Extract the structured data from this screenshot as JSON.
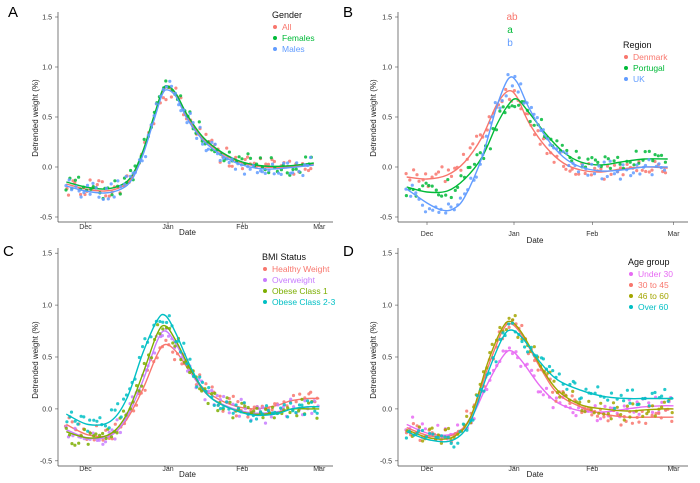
{
  "chart_data": [
    {
      "panel": "A",
      "type": "scatter",
      "xlabel": "Date",
      "ylabel": "Detrended weight (%)",
      "x_ticks": [
        "Dec",
        "Jan",
        "Feb",
        "Mar"
      ],
      "y_ticks": [
        "-0.5",
        "0.0",
        "0.5",
        "1.0",
        "1.5"
      ],
      "ylim": [
        -0.55,
        1.55
      ],
      "xlim": [
        -5,
        95
      ],
      "legend_title": "Gender",
      "series": [
        {
          "name": "All",
          "color": "#F8766D",
          "curve": [
            [
              -2,
              -0.17
            ],
            [
              5,
              -0.22
            ],
            [
              12,
              -0.24
            ],
            [
              18,
              -0.2
            ],
            [
              22,
              -0.1
            ],
            [
              26,
              0.15
            ],
            [
              30,
              0.5
            ],
            [
              33,
              0.75
            ],
            [
              35,
              0.79
            ],
            [
              38,
              0.72
            ],
            [
              42,
              0.5
            ],
            [
              48,
              0.28
            ],
            [
              55,
              0.13
            ],
            [
              62,
              0.04
            ],
            [
              70,
              0.0
            ],
            [
              78,
              0.0
            ],
            [
              85,
              0.02
            ],
            [
              88,
              0.03
            ]
          ]
        },
        {
          "name": "Females",
          "color": "#00BA38",
          "curve": [
            [
              -2,
              -0.15
            ],
            [
              5,
              -0.2
            ],
            [
              12,
              -0.22
            ],
            [
              18,
              -0.18
            ],
            [
              22,
              -0.08
            ],
            [
              26,
              0.17
            ],
            [
              30,
              0.52
            ],
            [
              33,
              0.77
            ],
            [
              35,
              0.81
            ],
            [
              38,
              0.73
            ],
            [
              42,
              0.52
            ],
            [
              48,
              0.29
            ],
            [
              55,
              0.14
            ],
            [
              62,
              0.05
            ],
            [
              70,
              0.01
            ],
            [
              78,
              0.01
            ],
            [
              85,
              0.03
            ],
            [
              88,
              0.04
            ]
          ]
        },
        {
          "name": "Males",
          "color": "#619CFF",
          "curve": [
            [
              -2,
              -0.19
            ],
            [
              5,
              -0.24
            ],
            [
              12,
              -0.26
            ],
            [
              18,
              -0.22
            ],
            [
              22,
              -0.12
            ],
            [
              26,
              0.13
            ],
            [
              30,
              0.48
            ],
            [
              33,
              0.73
            ],
            [
              35,
              0.77
            ],
            [
              38,
              0.7
            ],
            [
              42,
              0.48
            ],
            [
              48,
              0.26
            ],
            [
              55,
              0.11
            ],
            [
              62,
              0.02
            ],
            [
              70,
              -0.02
            ],
            [
              78,
              -0.01
            ],
            [
              85,
              0.01
            ],
            [
              88,
              0.02
            ]
          ]
        }
      ]
    },
    {
      "panel": "B",
      "type": "scatter",
      "xlabel": "Date",
      "ylabel": "Detrended weight (%)",
      "x_ticks": [
        "Dec",
        "Jan",
        "Feb",
        "Mar"
      ],
      "y_ticks": [
        "-0.5",
        "0.0",
        "0.5",
        "1.0",
        "1.5"
      ],
      "ylim": [
        -0.55,
        1.55
      ],
      "xlim": [
        -5,
        95
      ],
      "legend_title": "Region",
      "annotations": [
        {
          "text": "ab",
          "color": "#F8766D"
        },
        {
          "text": "a",
          "color": "#00BA38"
        },
        {
          "text": "b",
          "color": "#619CFF"
        }
      ],
      "series": [
        {
          "name": "Denmark",
          "color": "#F8766D",
          "curve": [
            [
              -2,
              -0.1
            ],
            [
              5,
              -0.12
            ],
            [
              12,
              -0.08
            ],
            [
              18,
              0.05
            ],
            [
              24,
              0.3
            ],
            [
              29,
              0.62
            ],
            [
              33,
              0.76
            ],
            [
              36,
              0.7
            ],
            [
              40,
              0.45
            ],
            [
              46,
              0.2
            ],
            [
              52,
              0.04
            ],
            [
              58,
              -0.03
            ],
            [
              65,
              -0.05
            ],
            [
              72,
              -0.02
            ],
            [
              80,
              0.0
            ],
            [
              88,
              -0.01
            ]
          ]
        },
        {
          "name": "Portugal",
          "color": "#00BA38",
          "curve": [
            [
              -2,
              -0.2
            ],
            [
              5,
              -0.25
            ],
            [
              12,
              -0.24
            ],
            [
              18,
              -0.12
            ],
            [
              24,
              0.1
            ],
            [
              29,
              0.42
            ],
            [
              33,
              0.62
            ],
            [
              36,
              0.68
            ],
            [
              40,
              0.55
            ],
            [
              46,
              0.33
            ],
            [
              52,
              0.15
            ],
            [
              58,
              0.05
            ],
            [
              65,
              0.02
            ],
            [
              72,
              0.05
            ],
            [
              80,
              0.08
            ],
            [
              88,
              0.08
            ]
          ]
        },
        {
          "name": "UK",
          "color": "#619CFF",
          "curve": [
            [
              -2,
              -0.22
            ],
            [
              5,
              -0.36
            ],
            [
              10,
              -0.43
            ],
            [
              14,
              -0.42
            ],
            [
              18,
              -0.3
            ],
            [
              24,
              0.1
            ],
            [
              29,
              0.6
            ],
            [
              33,
              0.88
            ],
            [
              36,
              0.85
            ],
            [
              40,
              0.6
            ],
            [
              46,
              0.3
            ],
            [
              52,
              0.1
            ],
            [
              58,
              0.0
            ],
            [
              65,
              -0.04
            ],
            [
              72,
              -0.03
            ],
            [
              80,
              0.0
            ],
            [
              88,
              0.0
            ]
          ]
        }
      ]
    },
    {
      "panel": "C",
      "type": "scatter",
      "xlabel": "Date",
      "ylabel": "Detrended weight (%)",
      "x_ticks": [
        "Dec",
        "Jan",
        "Feb",
        "Mar"
      ],
      "y_ticks": [
        "-0.5",
        "0.0",
        "0.5",
        "1.0",
        "1.5"
      ],
      "ylim": [
        -0.55,
        1.55
      ],
      "xlim": [
        -5,
        95
      ],
      "legend_title": "BMI Status",
      "series": [
        {
          "name": "Healthy Weight",
          "color": "#F8766D",
          "curve": [
            [
              -2,
              -0.15
            ],
            [
              6,
              -0.25
            ],
            [
              14,
              -0.25
            ],
            [
              20,
              -0.1
            ],
            [
              26,
              0.2
            ],
            [
              31,
              0.52
            ],
            [
              34,
              0.62
            ],
            [
              38,
              0.55
            ],
            [
              44,
              0.32
            ],
            [
              50,
              0.15
            ],
            [
              58,
              0.04
            ],
            [
              66,
              0.0
            ],
            [
              74,
              0.03
            ],
            [
              80,
              0.08
            ],
            [
              86,
              0.1
            ],
            [
              90,
              0.1
            ]
          ]
        },
        {
          "name": "Overweight",
          "color": "#C77CFF",
          "curve": [
            [
              -2,
              -0.2
            ],
            [
              6,
              -0.28
            ],
            [
              14,
              -0.26
            ],
            [
              20,
              -0.08
            ],
            [
              26,
              0.28
            ],
            [
              31,
              0.65
            ],
            [
              34,
              0.75
            ],
            [
              38,
              0.62
            ],
            [
              44,
              0.32
            ],
            [
              50,
              0.12
            ],
            [
              58,
              0.01
            ],
            [
              66,
              -0.04
            ],
            [
              74,
              -0.03
            ],
            [
              80,
              0.0
            ],
            [
              86,
              0.02
            ],
            [
              90,
              0.02
            ]
          ]
        },
        {
          "name": "Obese Class 1",
          "color": "#7CAE00",
          "curve": [
            [
              -2,
              -0.22
            ],
            [
              6,
              -0.28
            ],
            [
              14,
              -0.24
            ],
            [
              20,
              -0.05
            ],
            [
              26,
              0.35
            ],
            [
              31,
              0.72
            ],
            [
              34,
              0.8
            ],
            [
              38,
              0.65
            ],
            [
              44,
              0.34
            ],
            [
              50,
              0.12
            ],
            [
              58,
              0.0
            ],
            [
              66,
              -0.05
            ],
            [
              74,
              -0.04
            ],
            [
              80,
              0.0
            ],
            [
              86,
              0.0
            ],
            [
              90,
              0.0
            ]
          ]
        },
        {
          "name": "Obese Class 2-3",
          "color": "#00BFC4",
          "curve": [
            [
              -2,
              -0.05
            ],
            [
              6,
              -0.15
            ],
            [
              14,
              -0.12
            ],
            [
              20,
              0.1
            ],
            [
              26,
              0.55
            ],
            [
              31,
              0.85
            ],
            [
              34,
              0.9
            ],
            [
              38,
              0.72
            ],
            [
              44,
              0.36
            ],
            [
              50,
              0.12
            ],
            [
              58,
              0.0
            ],
            [
              66,
              -0.06
            ],
            [
              74,
              -0.05
            ],
            [
              80,
              0.0
            ],
            [
              86,
              0.02
            ],
            [
              90,
              0.02
            ]
          ]
        }
      ]
    },
    {
      "panel": "D",
      "type": "scatter",
      "xlabel": "Date",
      "ylabel": "Detrended weight (%)",
      "x_ticks": [
        "Dec",
        "Jan",
        "Feb",
        "Mar"
      ],
      "y_ticks": [
        "-0.5",
        "0.0",
        "0.5",
        "1.0",
        "1.5"
      ],
      "ylim": [
        -0.55,
        1.55
      ],
      "xlim": [
        -5,
        95
      ],
      "legend_title": "Age group",
      "series": [
        {
          "name": "Under 30",
          "color": "#E76BF3",
          "curve": [
            [
              -2,
              -0.15
            ],
            [
              6,
              -0.24
            ],
            [
              14,
              -0.24
            ],
            [
              20,
              -0.1
            ],
            [
              26,
              0.25
            ],
            [
              31,
              0.5
            ],
            [
              34,
              0.56
            ],
            [
              38,
              0.45
            ],
            [
              44,
              0.22
            ],
            [
              50,
              0.06
            ],
            [
              58,
              -0.02
            ],
            [
              66,
              -0.03
            ],
            [
              74,
              0.0
            ],
            [
              80,
              0.02
            ],
            [
              86,
              0.03
            ],
            [
              90,
              0.03
            ]
          ]
        },
        {
          "name": "30 to 45",
          "color": "#F8766D",
          "curve": [
            [
              -2,
              -0.18
            ],
            [
              6,
              -0.26
            ],
            [
              14,
              -0.25
            ],
            [
              20,
              -0.08
            ],
            [
              26,
              0.4
            ],
            [
              31,
              0.75
            ],
            [
              34,
              0.82
            ],
            [
              38,
              0.7
            ],
            [
              44,
              0.4
            ],
            [
              50,
              0.15
            ],
            [
              58,
              0.02
            ],
            [
              66,
              -0.05
            ],
            [
              74,
              -0.08
            ],
            [
              80,
              -0.08
            ],
            [
              86,
              -0.08
            ],
            [
              90,
              -0.08
            ]
          ]
        },
        {
          "name": "46 to 60",
          "color": "#A3A500",
          "curve": [
            [
              -2,
              -0.2
            ],
            [
              6,
              -0.28
            ],
            [
              14,
              -0.27
            ],
            [
              20,
              -0.08
            ],
            [
              26,
              0.45
            ],
            [
              31,
              0.78
            ],
            [
              34,
              0.84
            ],
            [
              38,
              0.72
            ],
            [
              44,
              0.42
            ],
            [
              50,
              0.18
            ],
            [
              58,
              0.04
            ],
            [
              66,
              0.0
            ],
            [
              74,
              -0.02
            ],
            [
              80,
              -0.01
            ],
            [
              86,
              0.0
            ],
            [
              90,
              0.0
            ]
          ]
        },
        {
          "name": "Over 60",
          "color": "#00BFC4",
          "curve": [
            [
              -2,
              -0.22
            ],
            [
              6,
              -0.3
            ],
            [
              14,
              -0.3
            ],
            [
              20,
              -0.12
            ],
            [
              26,
              0.35
            ],
            [
              31,
              0.68
            ],
            [
              34,
              0.76
            ],
            [
              38,
              0.68
            ],
            [
              44,
              0.45
            ],
            [
              50,
              0.28
            ],
            [
              58,
              0.18
            ],
            [
              66,
              0.12
            ],
            [
              74,
              0.1
            ],
            [
              80,
              0.1
            ],
            [
              86,
              0.1
            ],
            [
              90,
              0.1
            ]
          ]
        }
      ]
    }
  ]
}
